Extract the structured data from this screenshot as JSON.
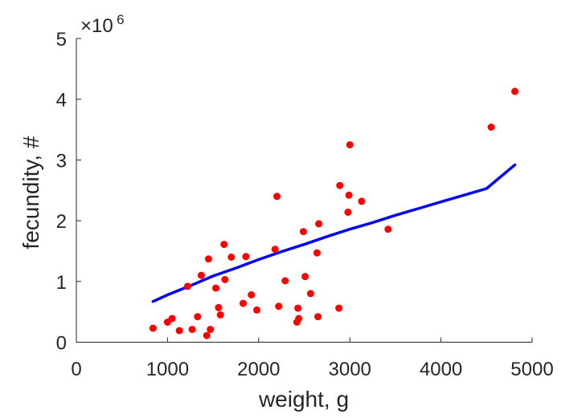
{
  "chart_data": {
    "type": "scatter",
    "xlabel": "weight, g",
    "ylabel": "fecundity, #",
    "y_multiplier": {
      "base": "×10",
      "exponent": "6"
    },
    "xlim": [
      0,
      5000
    ],
    "ylim": [
      0,
      5
    ],
    "xticks": [
      0,
      1000,
      2000,
      3000,
      4000,
      5000
    ],
    "xtick_labels": [
      "0",
      "1000",
      "2000",
      "3000",
      "4000",
      "5000"
    ],
    "yticks": [
      0,
      1,
      2,
      3,
      4,
      5
    ],
    "ytick_labels": [
      "0",
      "1",
      "2",
      "3",
      "4",
      "5"
    ],
    "grid": false,
    "series": [
      {
        "kind": "scatter",
        "color": "#ff0000",
        "x": [
          840,
          1000,
          1050,
          1130,
          1220,
          1270,
          1330,
          1370,
          1430,
          1450,
          1470,
          1530,
          1560,
          1580,
          1620,
          1630,
          1700,
          1830,
          1860,
          1920,
          1980,
          2180,
          2200,
          2220,
          2290,
          2420,
          2430,
          2440,
          2490,
          2510,
          2570,
          2640,
          2650,
          2660,
          2880,
          2890,
          2980,
          2990,
          3000,
          3130,
          3420,
          4550,
          4810
        ],
        "y": [
          0.23,
          0.33,
          0.39,
          0.19,
          0.92,
          0.21,
          0.42,
          1.1,
          0.11,
          1.37,
          0.21,
          0.89,
          0.57,
          0.45,
          1.61,
          1.03,
          1.4,
          0.64,
          1.41,
          0.78,
          0.53,
          1.53,
          2.4,
          0.59,
          1.01,
          0.33,
          0.56,
          0.39,
          1.82,
          1.08,
          0.8,
          1.47,
          0.42,
          1.95,
          0.56,
          2.58,
          2.14,
          2.42,
          3.25,
          2.32,
          1.86,
          3.54,
          4.13
        ]
      },
      {
        "kind": "line",
        "color": "#0000ff",
        "x": [
          840,
          1000,
          1250,
          1500,
          1750,
          2000,
          2250,
          2500,
          2750,
          3000,
          3250,
          3500,
          3750,
          4000,
          4250,
          4500,
          4810
        ],
        "y": [
          0.67,
          0.78,
          0.93,
          1.09,
          1.22,
          1.36,
          1.49,
          1.61,
          1.74,
          1.86,
          1.97,
          2.09,
          2.2,
          2.31,
          2.42,
          2.53,
          2.92
        ]
      }
    ]
  }
}
